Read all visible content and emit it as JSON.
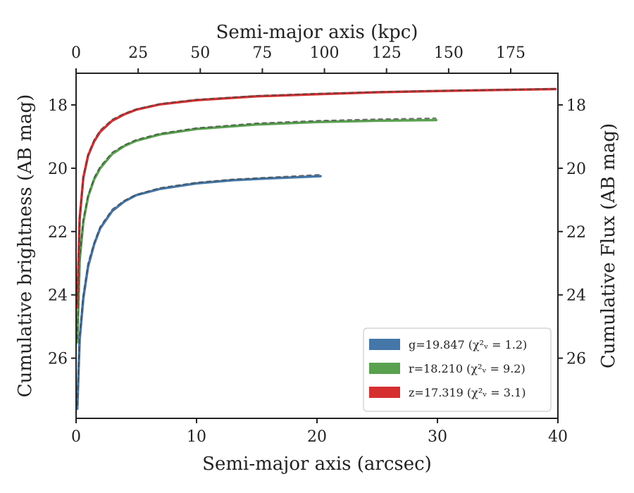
{
  "chart_data": {
    "type": "line",
    "title": "",
    "xlabel": "Semi-major axis (arcsec)",
    "ylabel": "Cumulative brightness (AB mag)",
    "x2label": "Semi-major axis (kpc)",
    "y2label": "Cumulative Flux (AB mag)",
    "xlim": [
      0,
      40
    ],
    "x2lim": [
      0,
      194
    ],
    "ylim": [
      27.9,
      17.0
    ],
    "y_inverted": true,
    "xticks": [
      0,
      10,
      20,
      30,
      40
    ],
    "x2ticks": [
      0,
      25,
      50,
      75,
      100,
      125,
      150,
      175
    ],
    "yticks": [
      18,
      20,
      22,
      24,
      26
    ],
    "legend_position": "lower-right",
    "series": [
      {
        "name": "g=19.847 (χ²ᵥ = 1.2)",
        "color": "#4477a8",
        "x": [
          0.1,
          0.3,
          0.6,
          1.0,
          1.5,
          2.0,
          3.0,
          4.0,
          5.0,
          7.0,
          10.0,
          13.0,
          16.0,
          18.0,
          20.3
        ],
        "y": [
          27.6,
          25.4,
          24.1,
          23.1,
          22.4,
          21.9,
          21.35,
          21.05,
          20.85,
          20.65,
          20.48,
          20.38,
          20.32,
          20.29,
          20.25
        ],
        "model_y": [
          27.5,
          25.3,
          24.0,
          23.0,
          22.35,
          21.85,
          21.3,
          21.02,
          20.83,
          20.62,
          20.45,
          20.35,
          20.29,
          20.25,
          20.2
        ]
      },
      {
        "name": "r=18.210 (χ²ᵥ = 9.2)",
        "color": "#59a14f",
        "x": [
          0.1,
          0.3,
          0.6,
          1.0,
          1.5,
          2.0,
          3.0,
          4.0,
          5.0,
          7.0,
          10.0,
          15.0,
          20.0,
          25.0,
          29.9
        ],
        "y": [
          25.5,
          22.9,
          21.7,
          20.9,
          20.35,
          20.0,
          19.55,
          19.3,
          19.13,
          18.93,
          18.76,
          18.62,
          18.54,
          18.5,
          18.48
        ],
        "model_y": [
          25.4,
          22.8,
          21.6,
          20.85,
          20.3,
          19.95,
          19.5,
          19.27,
          19.1,
          18.9,
          18.73,
          18.58,
          18.5,
          18.45,
          18.42
        ]
      },
      {
        "name": "z=17.319 (χ²ᵥ = 3.1)",
        "color": "#d62f30",
        "x": [
          0.1,
          0.3,
          0.6,
          1.0,
          1.5,
          2.0,
          3.0,
          4.0,
          5.0,
          7.0,
          10.0,
          15.0,
          20.0,
          25.0,
          30.0,
          35.0,
          39.8
        ],
        "y": [
          24.4,
          21.6,
          20.3,
          19.6,
          19.15,
          18.85,
          18.5,
          18.3,
          18.15,
          17.98,
          17.85,
          17.73,
          17.66,
          17.6,
          17.56,
          17.53,
          17.5
        ],
        "model_y": [
          24.3,
          21.5,
          20.25,
          19.55,
          19.1,
          18.8,
          18.46,
          18.27,
          18.13,
          17.96,
          17.83,
          17.71,
          17.64,
          17.59,
          17.55,
          17.52,
          17.49
        ]
      }
    ]
  }
}
